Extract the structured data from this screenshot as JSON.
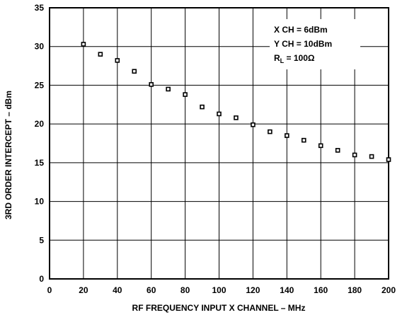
{
  "chart_data": {
    "type": "scatter",
    "title": "",
    "xlabel": "RF FREQUENCY INPUT X CHANNEL – MHz",
    "ylabel": "3RD ORDER INTERCEPT – dBm",
    "xlim": [
      0,
      200
    ],
    "ylim": [
      0,
      35
    ],
    "x_ticks": [
      0,
      20,
      40,
      60,
      80,
      100,
      120,
      140,
      160,
      180,
      200
    ],
    "y_ticks": [
      0,
      5,
      10,
      15,
      20,
      25,
      30,
      35
    ],
    "x_tick_labels": [
      "0",
      "20",
      "40",
      "60",
      "80",
      "100",
      "120",
      "140",
      "160",
      "180",
      "200"
    ],
    "y_tick_labels": [
      "0",
      "5",
      "10",
      "15",
      "20",
      "25",
      "30",
      "35"
    ],
    "grid": true,
    "legend": "none",
    "x": [
      20,
      30,
      40,
      50,
      60,
      70,
      80,
      90,
      100,
      110,
      120,
      130,
      140,
      150,
      160,
      170,
      180,
      190,
      200
    ],
    "series": [
      {
        "values": [
          30.3,
          29.0,
          28.2,
          26.8,
          25.1,
          24.5,
          23.8,
          22.2,
          21.3,
          20.8,
          19.9,
          19.0,
          18.5,
          17.9,
          17.2,
          16.6,
          16.0,
          15.8,
          15.4
        ]
      }
    ],
    "annotations": {
      "line1": "X CH = 6dBm",
      "line2": "Y CH = 10dBm",
      "line3_main": "R",
      "line3_sub": "L",
      "line3_rest": " = 100Ω"
    }
  }
}
